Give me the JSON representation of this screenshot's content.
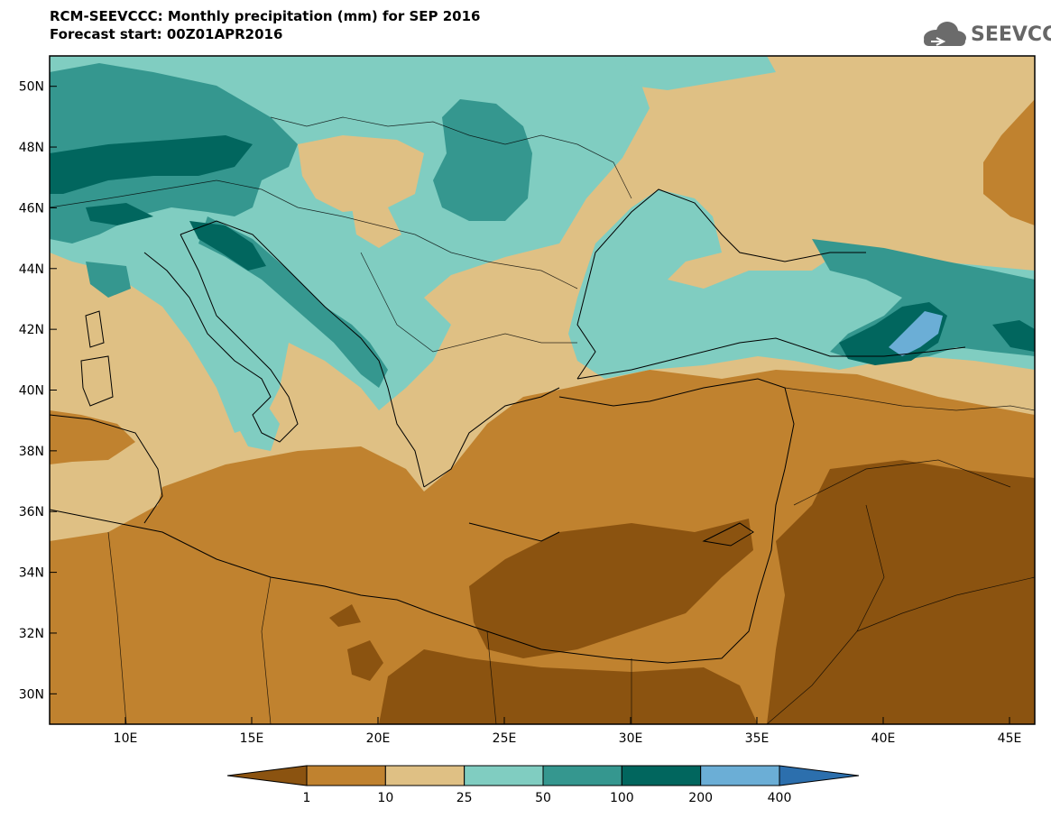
{
  "header": {
    "title": "RCM-SEEVCCC: Monthly precipitation (mm) for SEP 2016",
    "subtitle": "Forecast start: 00Z01APR2016"
  },
  "logo": {
    "text": "SEEVCCC",
    "icon": "cloud-icon"
  },
  "map": {
    "lon_range": [
      7,
      46
    ],
    "lat_range": [
      29,
      51
    ],
    "lon_ticks": [
      {
        "value": 10,
        "label": "10E"
      },
      {
        "value": 15,
        "label": "15E"
      },
      {
        "value": 20,
        "label": "20E"
      },
      {
        "value": 25,
        "label": "25E"
      },
      {
        "value": 30,
        "label": "30E"
      },
      {
        "value": 35,
        "label": "35E"
      },
      {
        "value": 40,
        "label": "40E"
      },
      {
        "value": 45,
        "label": "45E"
      }
    ],
    "lat_ticks": [
      {
        "value": 30,
        "label": "30N"
      },
      {
        "value": 32,
        "label": "32N"
      },
      {
        "value": 34,
        "label": "34N"
      },
      {
        "value": 36,
        "label": "36N"
      },
      {
        "value": 38,
        "label": "38N"
      },
      {
        "value": 40,
        "label": "40N"
      },
      {
        "value": 42,
        "label": "42N"
      },
      {
        "value": 44,
        "label": "44N"
      },
      {
        "value": 46,
        "label": "46N"
      },
      {
        "value": 48,
        "label": "48N"
      },
      {
        "value": 50,
        "label": "50N"
      }
    ]
  },
  "colorbar": {
    "levels": [
      "1",
      "10",
      "25",
      "50",
      "100",
      "200",
      "400"
    ],
    "colors": [
      "#8b5310",
      "#c0822f",
      "#dfc084",
      "#80cdc1",
      "#35978f",
      "#01665e",
      "#6baed6",
      "#2c6fad"
    ]
  }
}
